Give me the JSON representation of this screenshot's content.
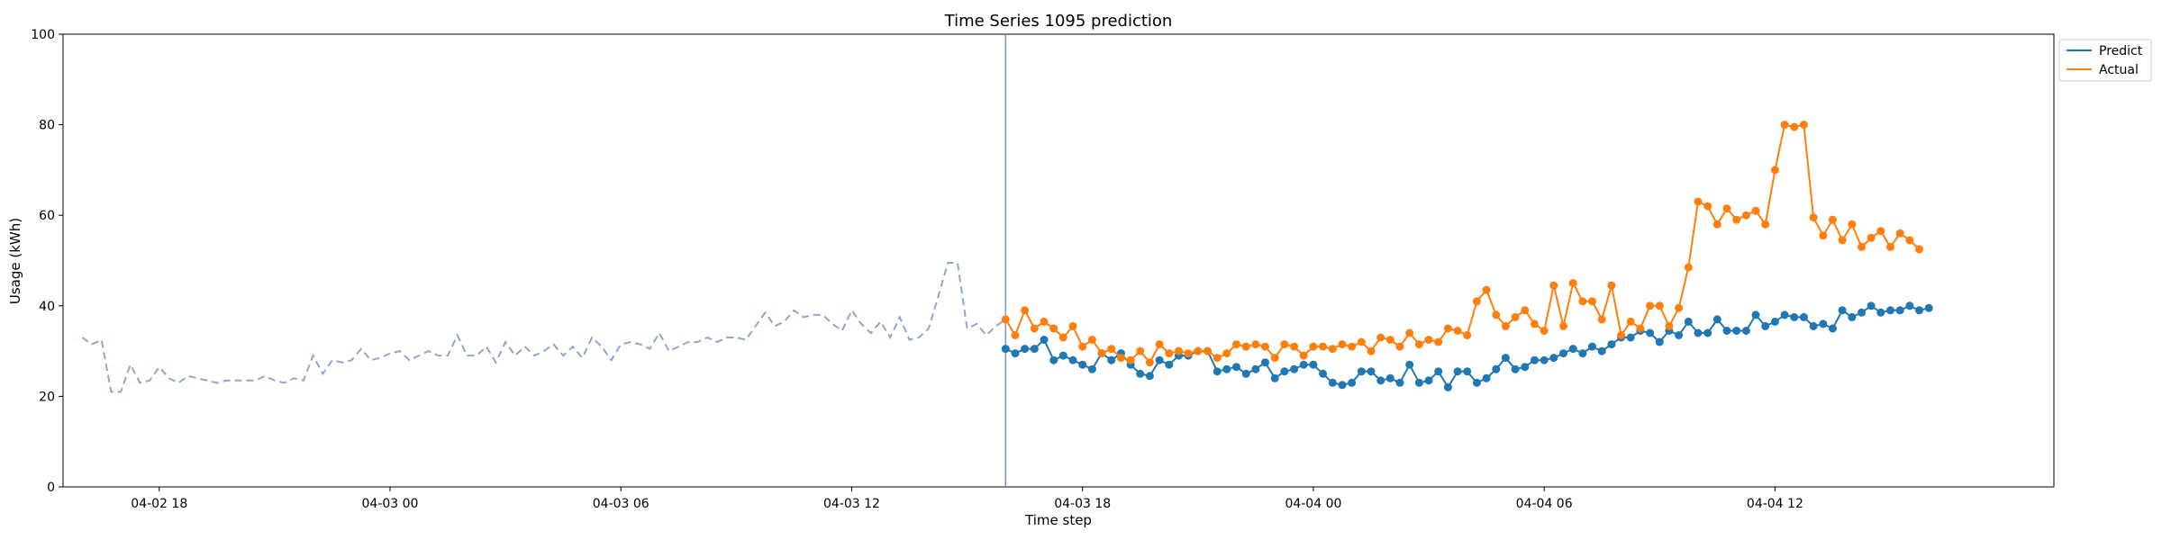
{
  "chart_data": {
    "type": "line",
    "title": "Time Series 1095 prediction",
    "xlabel": "Time step",
    "ylabel": "Usage (kWh)",
    "ylim": [
      0,
      100
    ],
    "yticks": [
      0,
      20,
      40,
      60,
      80,
      100
    ],
    "xlim": [
      "2024-04-02 15:30",
      "2024-04-04 19:15"
    ],
    "xticks": [
      {
        "t": "2024-04-02 18:00",
        "label": "04-02 18"
      },
      {
        "t": "2024-04-03 00:00",
        "label": "04-03 00"
      },
      {
        "t": "2024-04-03 06:00",
        "label": "04-03 06"
      },
      {
        "t": "2024-04-03 12:00",
        "label": "04-03 12"
      },
      {
        "t": "2024-04-03 18:00",
        "label": "04-03 18"
      },
      {
        "t": "2024-04-04 00:00",
        "label": "04-04 00"
      },
      {
        "t": "2024-04-04 06:00",
        "label": "04-04 06"
      },
      {
        "t": "2024-04-04 12:00",
        "label": "04-04 12"
      }
    ],
    "grid": false,
    "legend_placement": "upper right, outside plot",
    "forecast_start": "2024-04-03 16:00",
    "history": {
      "start": "2024-04-02 16:00",
      "step_minutes": 15,
      "color": "#8ea7cf",
      "style": "dashed",
      "values": [
        33,
        31.5,
        32.5,
        21,
        21,
        27,
        23,
        23.5,
        26.5,
        24,
        23,
        24.5,
        24,
        23.5,
        23,
        23.5,
        23.5,
        23.5,
        23.5,
        24.5,
        23.5,
        23,
        24,
        23.5,
        29,
        25,
        28,
        27.5,
        28,
        30.5,
        28,
        28.5,
        29.5,
        30,
        28,
        29,
        30,
        29,
        29,
        33.5,
        29,
        29,
        31,
        27.5,
        32,
        29,
        31,
        29,
        30,
        31.5,
        29,
        31,
        28.5,
        33,
        31,
        28,
        31.5,
        32,
        31.5,
        30.5,
        34,
        30,
        31,
        32,
        32,
        33,
        32,
        33,
        33,
        32.5,
        35.5,
        38.5,
        35.5,
        36.5,
        39,
        37.5,
        38,
        38,
        36,
        34.5,
        39,
        36,
        34,
        36.5,
        33,
        37.5,
        32.5,
        33,
        35,
        42,
        49.5,
        49.5,
        35,
        36,
        33.5,
        35.5,
        37
      ]
    },
    "series": [
      {
        "name": "Predict",
        "color": "#1f77b4",
        "start": "2024-04-03 16:00",
        "step_minutes": 15,
        "values": [
          30.5,
          29.5,
          30.5,
          30.5,
          32.5,
          28,
          29,
          28,
          27,
          26,
          29.5,
          28,
          29.5,
          27,
          25,
          24.5,
          28,
          27,
          29,
          29,
          30,
          30,
          25.5,
          26,
          26.5,
          25,
          26,
          27.5,
          24,
          25.5,
          26,
          27,
          27,
          25,
          23,
          22.5,
          23,
          25.5,
          25.5,
          23.5,
          24,
          23,
          27,
          23,
          23.5,
          25.5,
          22,
          25.5,
          25.5,
          23,
          24,
          26,
          28.5,
          26,
          26.5,
          28,
          28,
          28.5,
          29.5,
          30.5,
          29.5,
          31,
          30,
          31.5,
          33,
          33,
          34.5,
          34,
          32,
          34.5,
          33.5,
          36.5,
          34,
          34,
          37,
          34.5,
          34.5,
          34.5,
          38,
          35.5,
          36.5,
          38,
          37.5,
          37.5,
          35.5,
          36,
          35,
          39,
          37.5,
          38.5,
          40,
          38.5,
          39,
          39,
          40,
          39,
          39.5
        ]
      },
      {
        "name": "Actual",
        "color": "#ff7f0e",
        "start": "2024-04-03 16:00",
        "step_minutes": 15,
        "values": [
          37,
          33.5,
          39,
          35,
          36.5,
          35,
          33,
          35.5,
          31,
          32.5,
          29.5,
          30.5,
          28.5,
          28,
          30,
          27.5,
          31.5,
          29.5,
          30,
          29.5,
          30,
          30,
          28.5,
          29.5,
          31.5,
          31,
          31.5,
          31,
          28.5,
          31.5,
          31,
          29,
          31,
          31,
          30.5,
          31.5,
          31,
          32,
          30,
          33,
          32.5,
          31,
          34,
          31.5,
          32.5,
          32,
          35,
          34.5,
          33.5,
          41,
          43.5,
          38,
          35.5,
          37.5,
          39,
          36,
          34.5,
          44.5,
          35.5,
          45,
          41,
          41,
          37,
          44.5,
          33.5,
          36.5,
          35,
          40,
          40,
          35.5,
          39.5,
          48.5,
          63,
          62,
          58,
          61.5,
          59,
          60,
          61,
          58,
          70,
          80,
          79.5,
          80,
          59.5,
          55.5,
          59,
          54.5,
          58,
          53,
          55,
          56.5,
          53,
          56,
          54.5,
          52.5
        ]
      }
    ]
  }
}
